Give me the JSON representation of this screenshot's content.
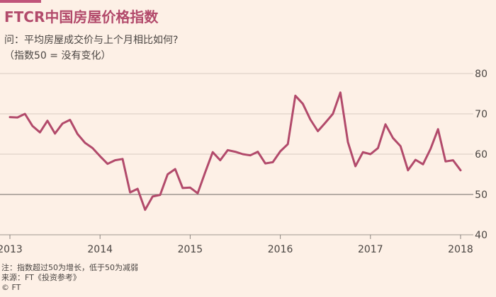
{
  "header": {
    "title": "FTCR中国房屋价格指数",
    "subtitle_line1": "问：平均房屋成交价与上个月相比如何?",
    "subtitle_line2": "（指数50 = 没有变化）"
  },
  "footer": {
    "note": "注：指数超过50为增长，低于50为减弱",
    "source": "来源：FT《投资参考》",
    "copyright": "© FT"
  },
  "colors": {
    "background": "#fdf0e6",
    "line": "#b24a6b",
    "accent_bar": "#c0547a",
    "grid": "#d9ccc3",
    "baseline": "#8c8580"
  },
  "chart_data": {
    "type": "line",
    "title": "FTCR中国房屋价格指数",
    "xlabel": "",
    "ylabel": "",
    "x_ticks": [
      "2013",
      "2014",
      "2015",
      "2016",
      "2017",
      "2018"
    ],
    "y_ticks": [
      40,
      50,
      60,
      70,
      80
    ],
    "xlim": [
      2013.0,
      2018.0
    ],
    "ylim": [
      40,
      80
    ],
    "grid": true,
    "reference_line": 50,
    "series": [
      {
        "name": "",
        "x": [
          2013.0,
          2013.083,
          2013.167,
          2013.25,
          2013.333,
          2013.417,
          2013.5,
          2013.583,
          2013.667,
          2013.75,
          2013.833,
          2013.917,
          2014.0,
          2014.083,
          2014.167,
          2014.25,
          2014.333,
          2014.417,
          2014.5,
          2014.583,
          2014.667,
          2014.75,
          2014.833,
          2014.917,
          2015.0,
          2015.083,
          2015.167,
          2015.25,
          2015.333,
          2015.417,
          2015.5,
          2015.583,
          2015.667,
          2015.75,
          2015.833,
          2015.917,
          2016.0,
          2016.083,
          2016.167,
          2016.25,
          2016.333,
          2016.417,
          2016.5,
          2016.583,
          2016.667,
          2016.75,
          2016.833,
          2016.917,
          2017.0,
          2017.083,
          2017.167,
          2017.25,
          2017.333,
          2017.417,
          2017.5,
          2017.583,
          2017.667,
          2017.75,
          2017.833,
          2017.917,
          2018.0
        ],
        "values": [
          69.2,
          69.1,
          70.0,
          67.0,
          65.4,
          68.3,
          65.1,
          67.6,
          68.5,
          65.0,
          62.8,
          61.5,
          59.5,
          57.6,
          58.5,
          58.8,
          50.5,
          51.4,
          46.2,
          49.5,
          49.9,
          55.0,
          56.3,
          51.6,
          51.7,
          50.3,
          55.5,
          60.5,
          58.5,
          61.0,
          60.6,
          60.0,
          59.7,
          60.6,
          57.7,
          58.0,
          60.7,
          62.5,
          74.5,
          72.5,
          68.6,
          65.7,
          67.8,
          70.0,
          75.3,
          63.0,
          57.0,
          60.5,
          60.0,
          61.5,
          67.4,
          64.0,
          62.0,
          56.0,
          58.6,
          57.5,
          61.3,
          66.2,
          58.2,
          58.5,
          56.0
        ]
      }
    ]
  }
}
